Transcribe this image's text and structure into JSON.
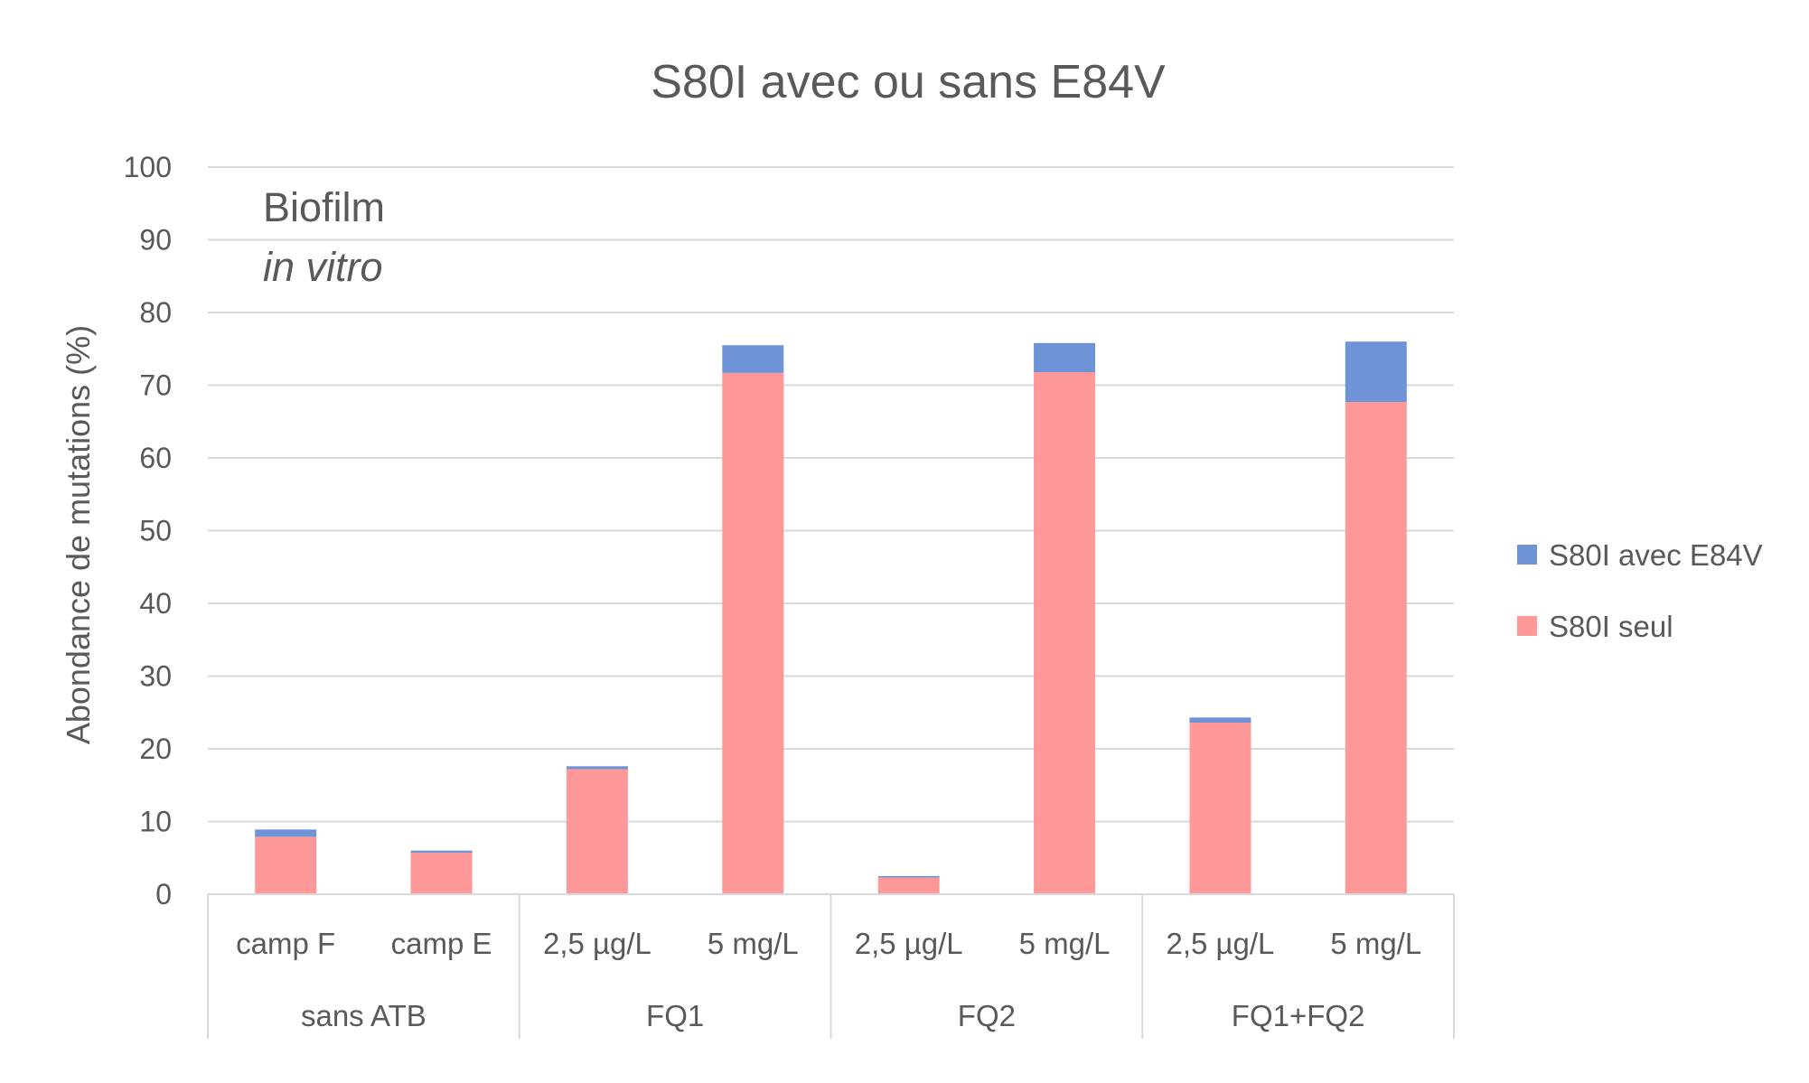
{
  "chart_data": {
    "type": "bar",
    "stacked": true,
    "title": "S80I avec ou sans E84V",
    "ylabel": "Abondance de mutations (%)",
    "xlabel": "",
    "ylim": [
      0,
      100
    ],
    "yticks": [
      0,
      10,
      20,
      30,
      40,
      50,
      60,
      70,
      80,
      90,
      100
    ],
    "grid": true,
    "legend_position": "right",
    "annotation": {
      "line1": "Biofilm",
      "line2": "in vitro"
    },
    "categories": [
      "camp F",
      "camp E",
      "2,5 µg/L",
      "5 mg/L",
      "2,5 µg/L",
      "5 mg/L",
      "2,5 µg/L",
      "5 mg/L"
    ],
    "groups": [
      {
        "label": "sans ATB",
        "span": 2
      },
      {
        "label": "FQ1",
        "span": 2
      },
      {
        "label": "FQ2",
        "span": 2
      },
      {
        "label": "FQ1+FQ2",
        "span": 2
      }
    ],
    "series": [
      {
        "name": "S80I seul",
        "color": "#ff9999",
        "values": [
          7.9,
          5.7,
          17.2,
          71.7,
          2.3,
          71.8,
          23.6,
          67.7
        ]
      },
      {
        "name": "S80I avec E84V",
        "color": "#6e93d6",
        "values": [
          1.0,
          0.3,
          0.4,
          3.8,
          0.2,
          4.0,
          0.7,
          8.3
        ]
      }
    ],
    "legend": [
      {
        "name": "S80I avec E84V",
        "color": "#6e93d6"
      },
      {
        "name": "S80I seul",
        "color": "#ff9999"
      }
    ]
  }
}
